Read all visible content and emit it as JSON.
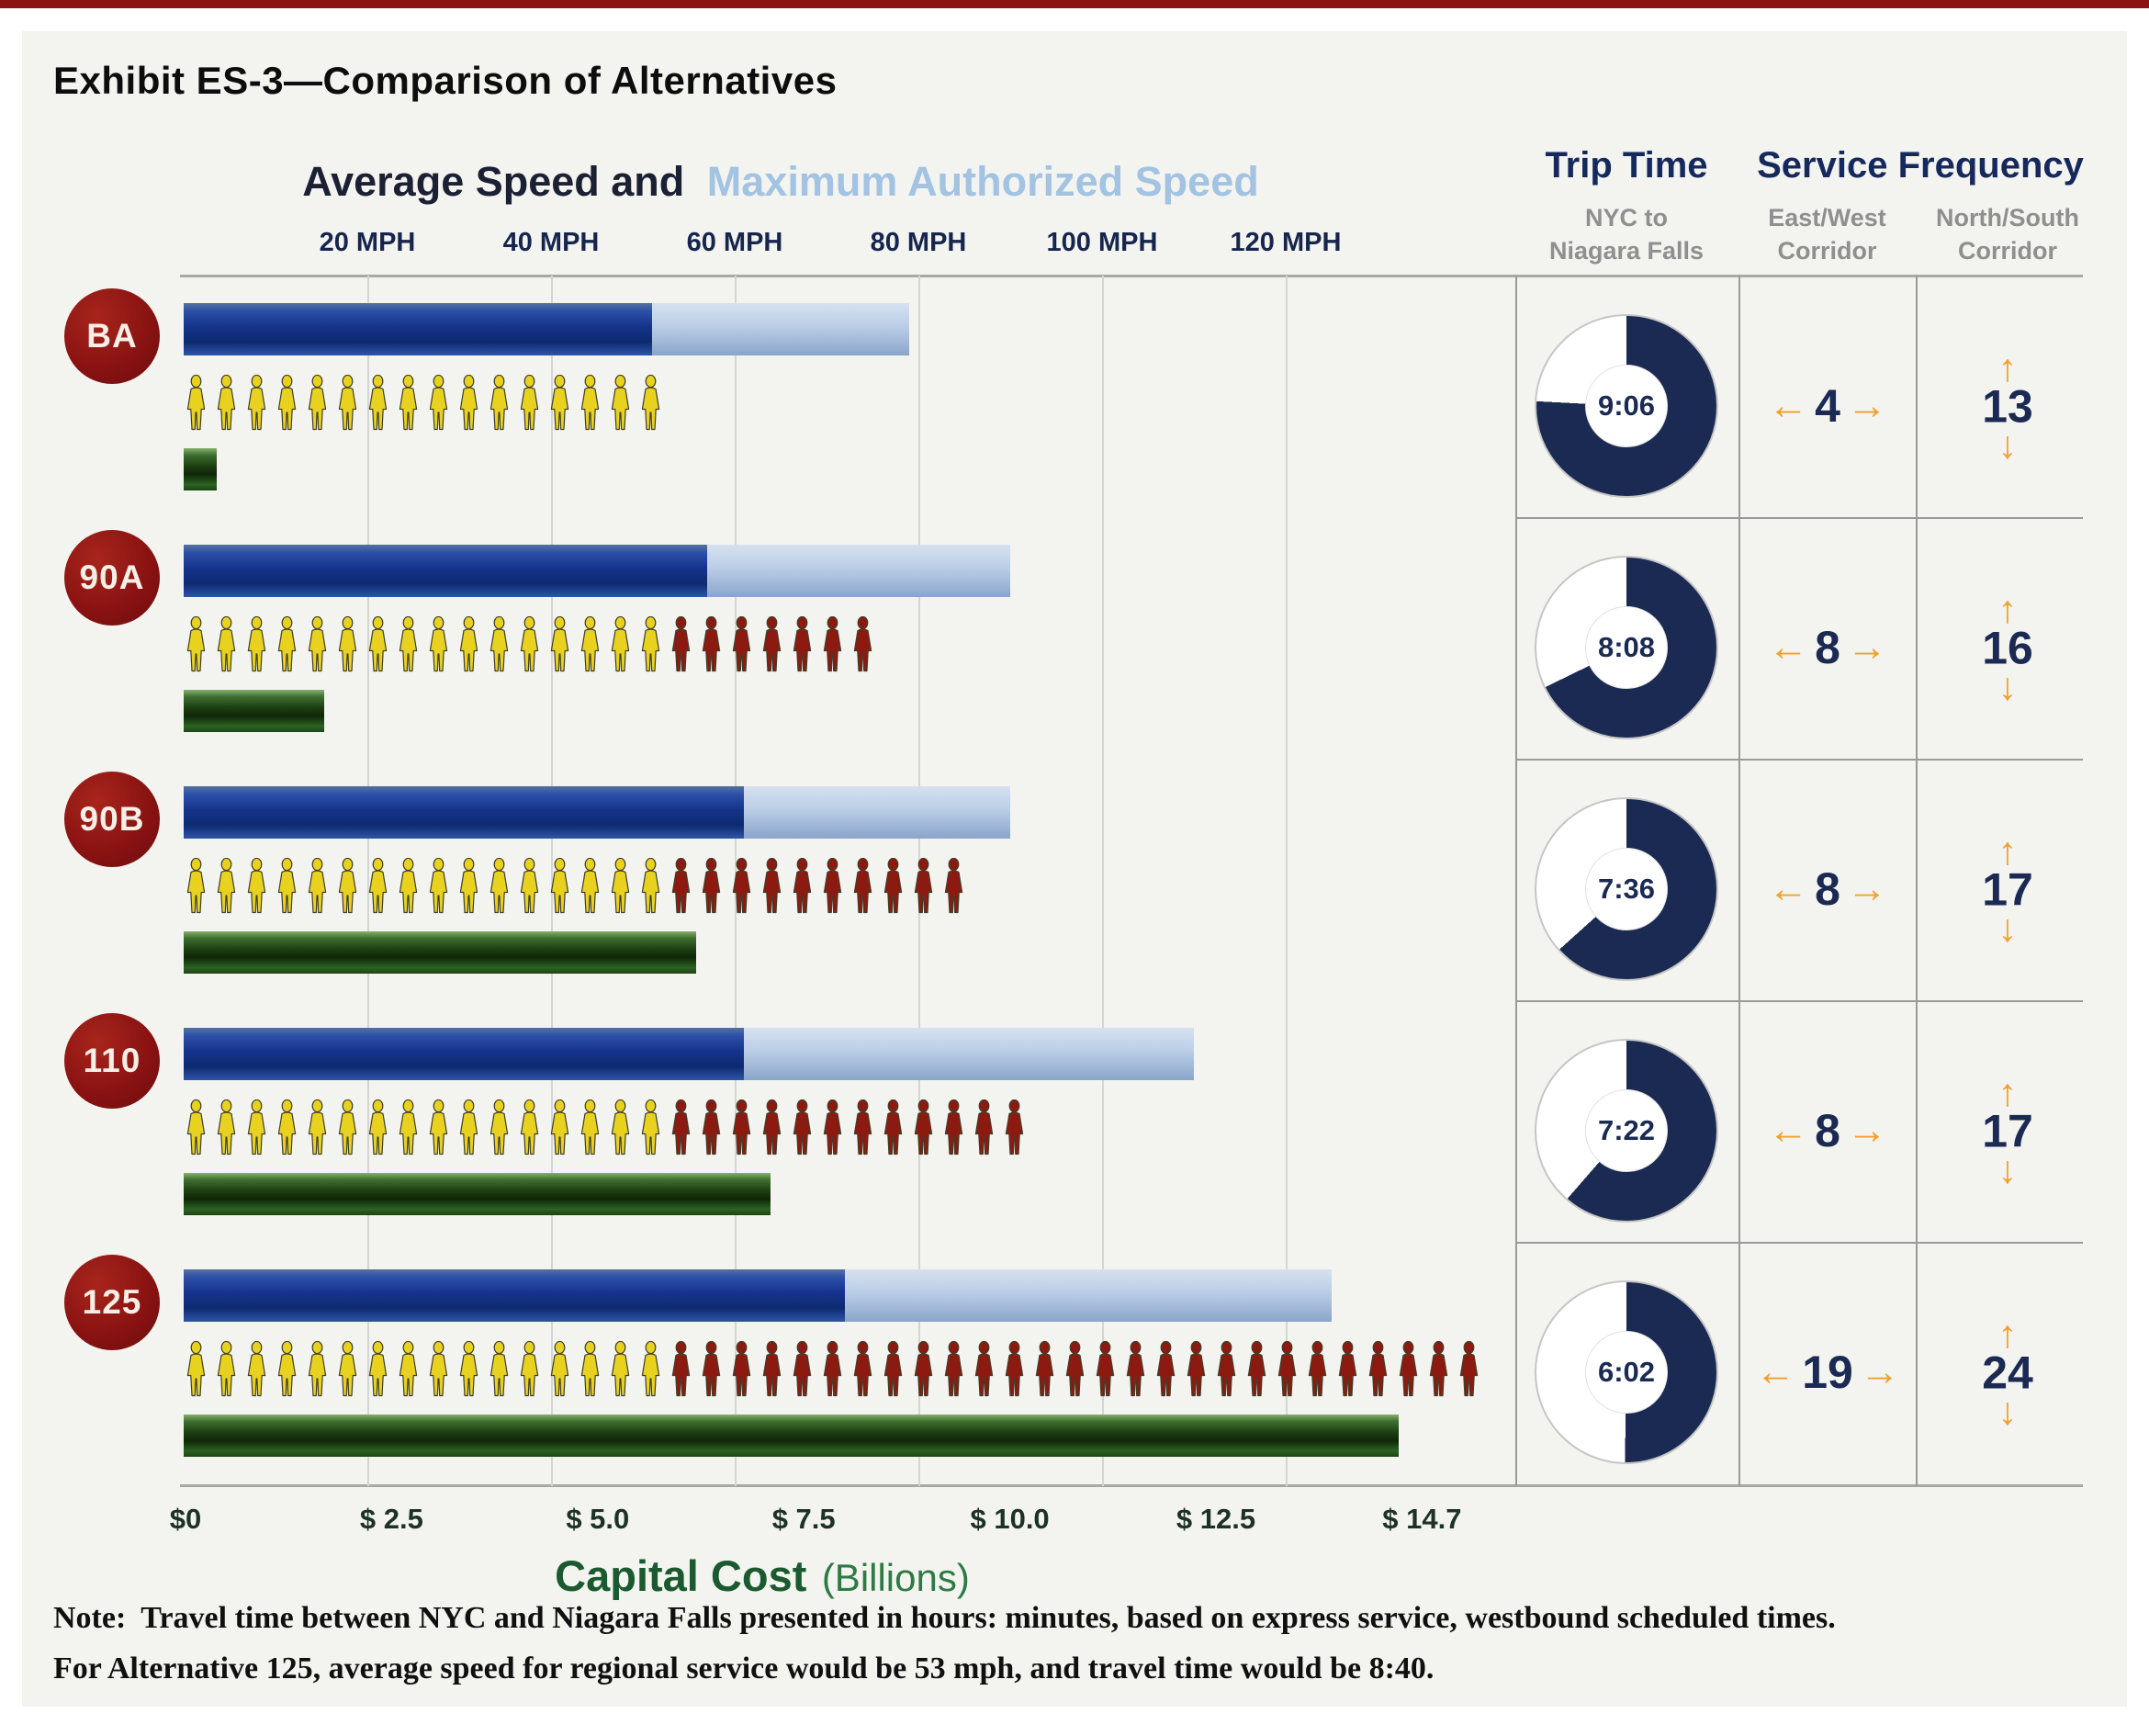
{
  "title": "Exhibit ES-3—Comparison of Alternatives",
  "chart_header": {
    "dark_text": "Average Speed and",
    "light_text": "Maximum Authorized Speed"
  },
  "right_columns": {
    "trip_time_title": "Trip Time",
    "trip_time_sub1": "NYC to",
    "trip_time_sub2": "Niagara Falls",
    "service_frequency_title": "Service Frequency",
    "east_west_sub1": "East/West",
    "east_west_sub2": "Corridor",
    "north_south_sub1": "North/South",
    "north_south_sub2": "Corridor"
  },
  "cost_axis_title": {
    "bold": "Capital Cost",
    "normal": "(Billions)"
  },
  "note": {
    "label": "Note:",
    "line1": "Travel time between NYC and Niagara Falls presented in hours: minutes, based on express service, westbound scheduled times.",
    "line2": "For Alternative 125, average speed for regional service would be 53 mph, and travel time would be 8:40."
  },
  "icons": {
    "arrow_left": "←",
    "arrow_right": "→",
    "arrow_up": "↑",
    "arrow_down": "↓"
  },
  "colors": {
    "navy": "#1b2a52",
    "header_light_blue": "#a2c3e2",
    "badge_red": "#8a1312",
    "person_yellow": "#e9d21f",
    "person_red": "#8c1a10",
    "orange": "#efa12b",
    "green_title": "#1b5a2e",
    "grid_gray": "#d5d5d2",
    "divider_gray": "#9a9a9a",
    "subheader_gray": "#8f8f8f"
  },
  "chart_data": {
    "type": "bar",
    "title": "Average Speed and Maximum Authorized Speed",
    "speed_axis": {
      "unit": "MPH",
      "ticks": [
        20,
        40,
        60,
        80,
        100,
        120
      ],
      "labels": [
        "20 MPH",
        "40 MPH",
        "60 MPH",
        "80 MPH",
        "100 MPH",
        "120 MPH"
      ],
      "range": [
        0,
        140
      ]
    },
    "cost_axis": {
      "title": "Capital Cost (Billions)",
      "tick_labels": [
        "$0",
        "$ 2.5",
        "$ 5.0",
        "$ 7.5",
        "$ 10.0",
        "$ 12.5",
        "$ 14.7"
      ],
      "tick_values": [
        0,
        2.5,
        5.0,
        7.5,
        10.0,
        12.5,
        14.7
      ]
    },
    "rows": [
      {
        "id": "BA",
        "avg_speed_mph": 51,
        "max_authorized_speed_mph": 79,
        "rider_icons_yellow": 16,
        "rider_icons_red": 0,
        "capital_cost_billions": 0.4,
        "trip_time_nyc_to_niagara": "9:06",
        "service_frequency_east_west": 4,
        "service_frequency_north_south": 13
      },
      {
        "id": "90A",
        "avg_speed_mph": 57,
        "max_authorized_speed_mph": 90,
        "rider_icons_yellow": 16,
        "rider_icons_red": 7,
        "capital_cost_billions": 1.7,
        "trip_time_nyc_to_niagara": "8:08",
        "service_frequency_east_west": 8,
        "service_frequency_north_south": 16
      },
      {
        "id": "90B",
        "avg_speed_mph": 61,
        "max_authorized_speed_mph": 90,
        "rider_icons_yellow": 16,
        "rider_icons_red": 10,
        "capital_cost_billions": 6.2,
        "trip_time_nyc_to_niagara": "7:36",
        "service_frequency_east_west": 8,
        "service_frequency_north_south": 17
      },
      {
        "id": "110",
        "avg_speed_mph": 61,
        "max_authorized_speed_mph": 110,
        "rider_icons_yellow": 16,
        "rider_icons_red": 12,
        "capital_cost_billions": 7.1,
        "trip_time_nyc_to_niagara": "7:22",
        "service_frequency_east_west": 8,
        "service_frequency_north_south": 17
      },
      {
        "id": "125",
        "avg_speed_mph": 72,
        "max_authorized_speed_mph": 125,
        "rider_icons_yellow": 16,
        "rider_icons_red": 27,
        "capital_cost_billions": 14.7,
        "trip_time_nyc_to_niagara": "6:02",
        "service_frequency_east_west": 19,
        "service_frequency_north_south": 24
      }
    ]
  }
}
